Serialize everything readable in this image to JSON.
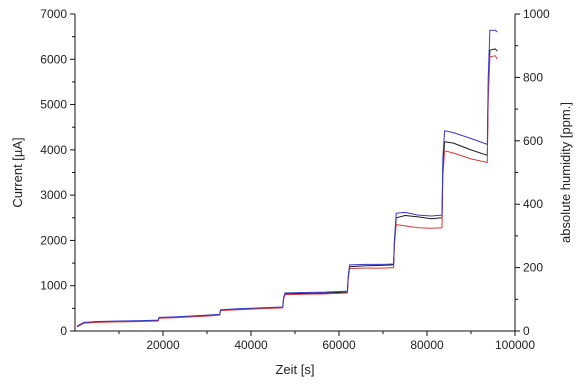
{
  "chart_data": {
    "type": "line",
    "title": "",
    "xlabel": "Zeit [s]",
    "ylabel": "Current [µA]",
    "y2label": "absolute humidity [ppm.]",
    "xlim": [
      0,
      100000
    ],
    "ylim": [
      0,
      7000
    ],
    "y2lim": [
      0,
      1000
    ],
    "xticks": [
      20000,
      40000,
      60000,
      80000,
      100000
    ],
    "xtick_labels": [
      "20000",
      "40000",
      "60000",
      "80000",
      "100000"
    ],
    "yticks": [
      0,
      1000,
      2000,
      3000,
      4000,
      5000,
      6000,
      7000
    ],
    "ytick_labels": [
      "0",
      "1000",
      "2000",
      "3000",
      "4000",
      "5000",
      "6000",
      "7000"
    ],
    "y2ticks": [
      0,
      200,
      400,
      600,
      800,
      1000
    ],
    "y2tick_labels": [
      "0",
      "200",
      "400",
      "600",
      "800",
      "1000"
    ],
    "grid": false,
    "legend": "none",
    "series": [
      {
        "color": "#1a1a1a",
        "x": [
          500,
          2000,
          5000,
          10000,
          15000,
          18900,
          19100,
          22000,
          26000,
          30000,
          32900,
          33100,
          37000,
          42000,
          47200,
          47400,
          47700,
          52000,
          57000,
          61900,
          62100,
          62400,
          66000,
          70000,
          72400,
          72600,
          73000,
          75000,
          78000,
          81000,
          83400,
          83600,
          84000,
          86000,
          90000,
          93700,
          93900,
          94300,
          95500,
          96000
        ],
        "y": [
          100,
          180,
          200,
          210,
          220,
          230,
          290,
          300,
          320,
          340,
          360,
          460,
          480,
          500,
          520,
          720,
          820,
          830,
          840,
          860,
          1180,
          1420,
          1440,
          1450,
          1460,
          1960,
          2500,
          2550,
          2520,
          2480,
          2500,
          3600,
          4180,
          4150,
          4000,
          3880,
          5300,
          6200,
          6230,
          6180
        ]
      },
      {
        "color": "#d43c3c",
        "x": [
          500,
          2000,
          5000,
          10000,
          15000,
          18900,
          19100,
          22000,
          26000,
          30000,
          32900,
          33100,
          37000,
          42000,
          47200,
          47400,
          47700,
          52000,
          57000,
          61900,
          62100,
          62400,
          66000,
          70000,
          72400,
          72600,
          73000,
          75000,
          78000,
          81000,
          83400,
          83600,
          84000,
          86000,
          90000,
          93700,
          93900,
          94300,
          95500,
          96000
        ],
        "y": [
          90,
          170,
          190,
          200,
          210,
          220,
          280,
          290,
          310,
          330,
          350,
          450,
          470,
          490,
          510,
          700,
          800,
          810,
          820,
          840,
          1150,
          1380,
          1390,
          1390,
          1400,
          1900,
          2350,
          2320,
          2280,
          2270,
          2280,
          3400,
          3980,
          3930,
          3800,
          3720,
          5100,
          6050,
          6080,
          6000
        ]
      },
      {
        "color": "#3a3ac8",
        "x": [
          500,
          2000,
          5000,
          10000,
          15000,
          18900,
          19100,
          22000,
          26000,
          30000,
          32900,
          33100,
          37000,
          42000,
          47200,
          47400,
          47700,
          52000,
          57000,
          61900,
          62100,
          62400,
          66000,
          70000,
          72400,
          72600,
          73000,
          75000,
          78000,
          81000,
          83400,
          83600,
          84000,
          86000,
          90000,
          93700,
          93900,
          94300,
          95500,
          96000
        ],
        "y": [
          110,
          190,
          210,
          220,
          230,
          240,
          300,
          310,
          330,
          350,
          370,
          470,
          490,
          510,
          530,
          740,
          840,
          850,
          860,
          880,
          1200,
          1460,
          1470,
          1470,
          1480,
          2000,
          2600,
          2620,
          2560,
          2540,
          2560,
          3800,
          4420,
          4380,
          4250,
          4120,
          5600,
          6640,
          6640,
          6600
        ]
      }
    ]
  }
}
